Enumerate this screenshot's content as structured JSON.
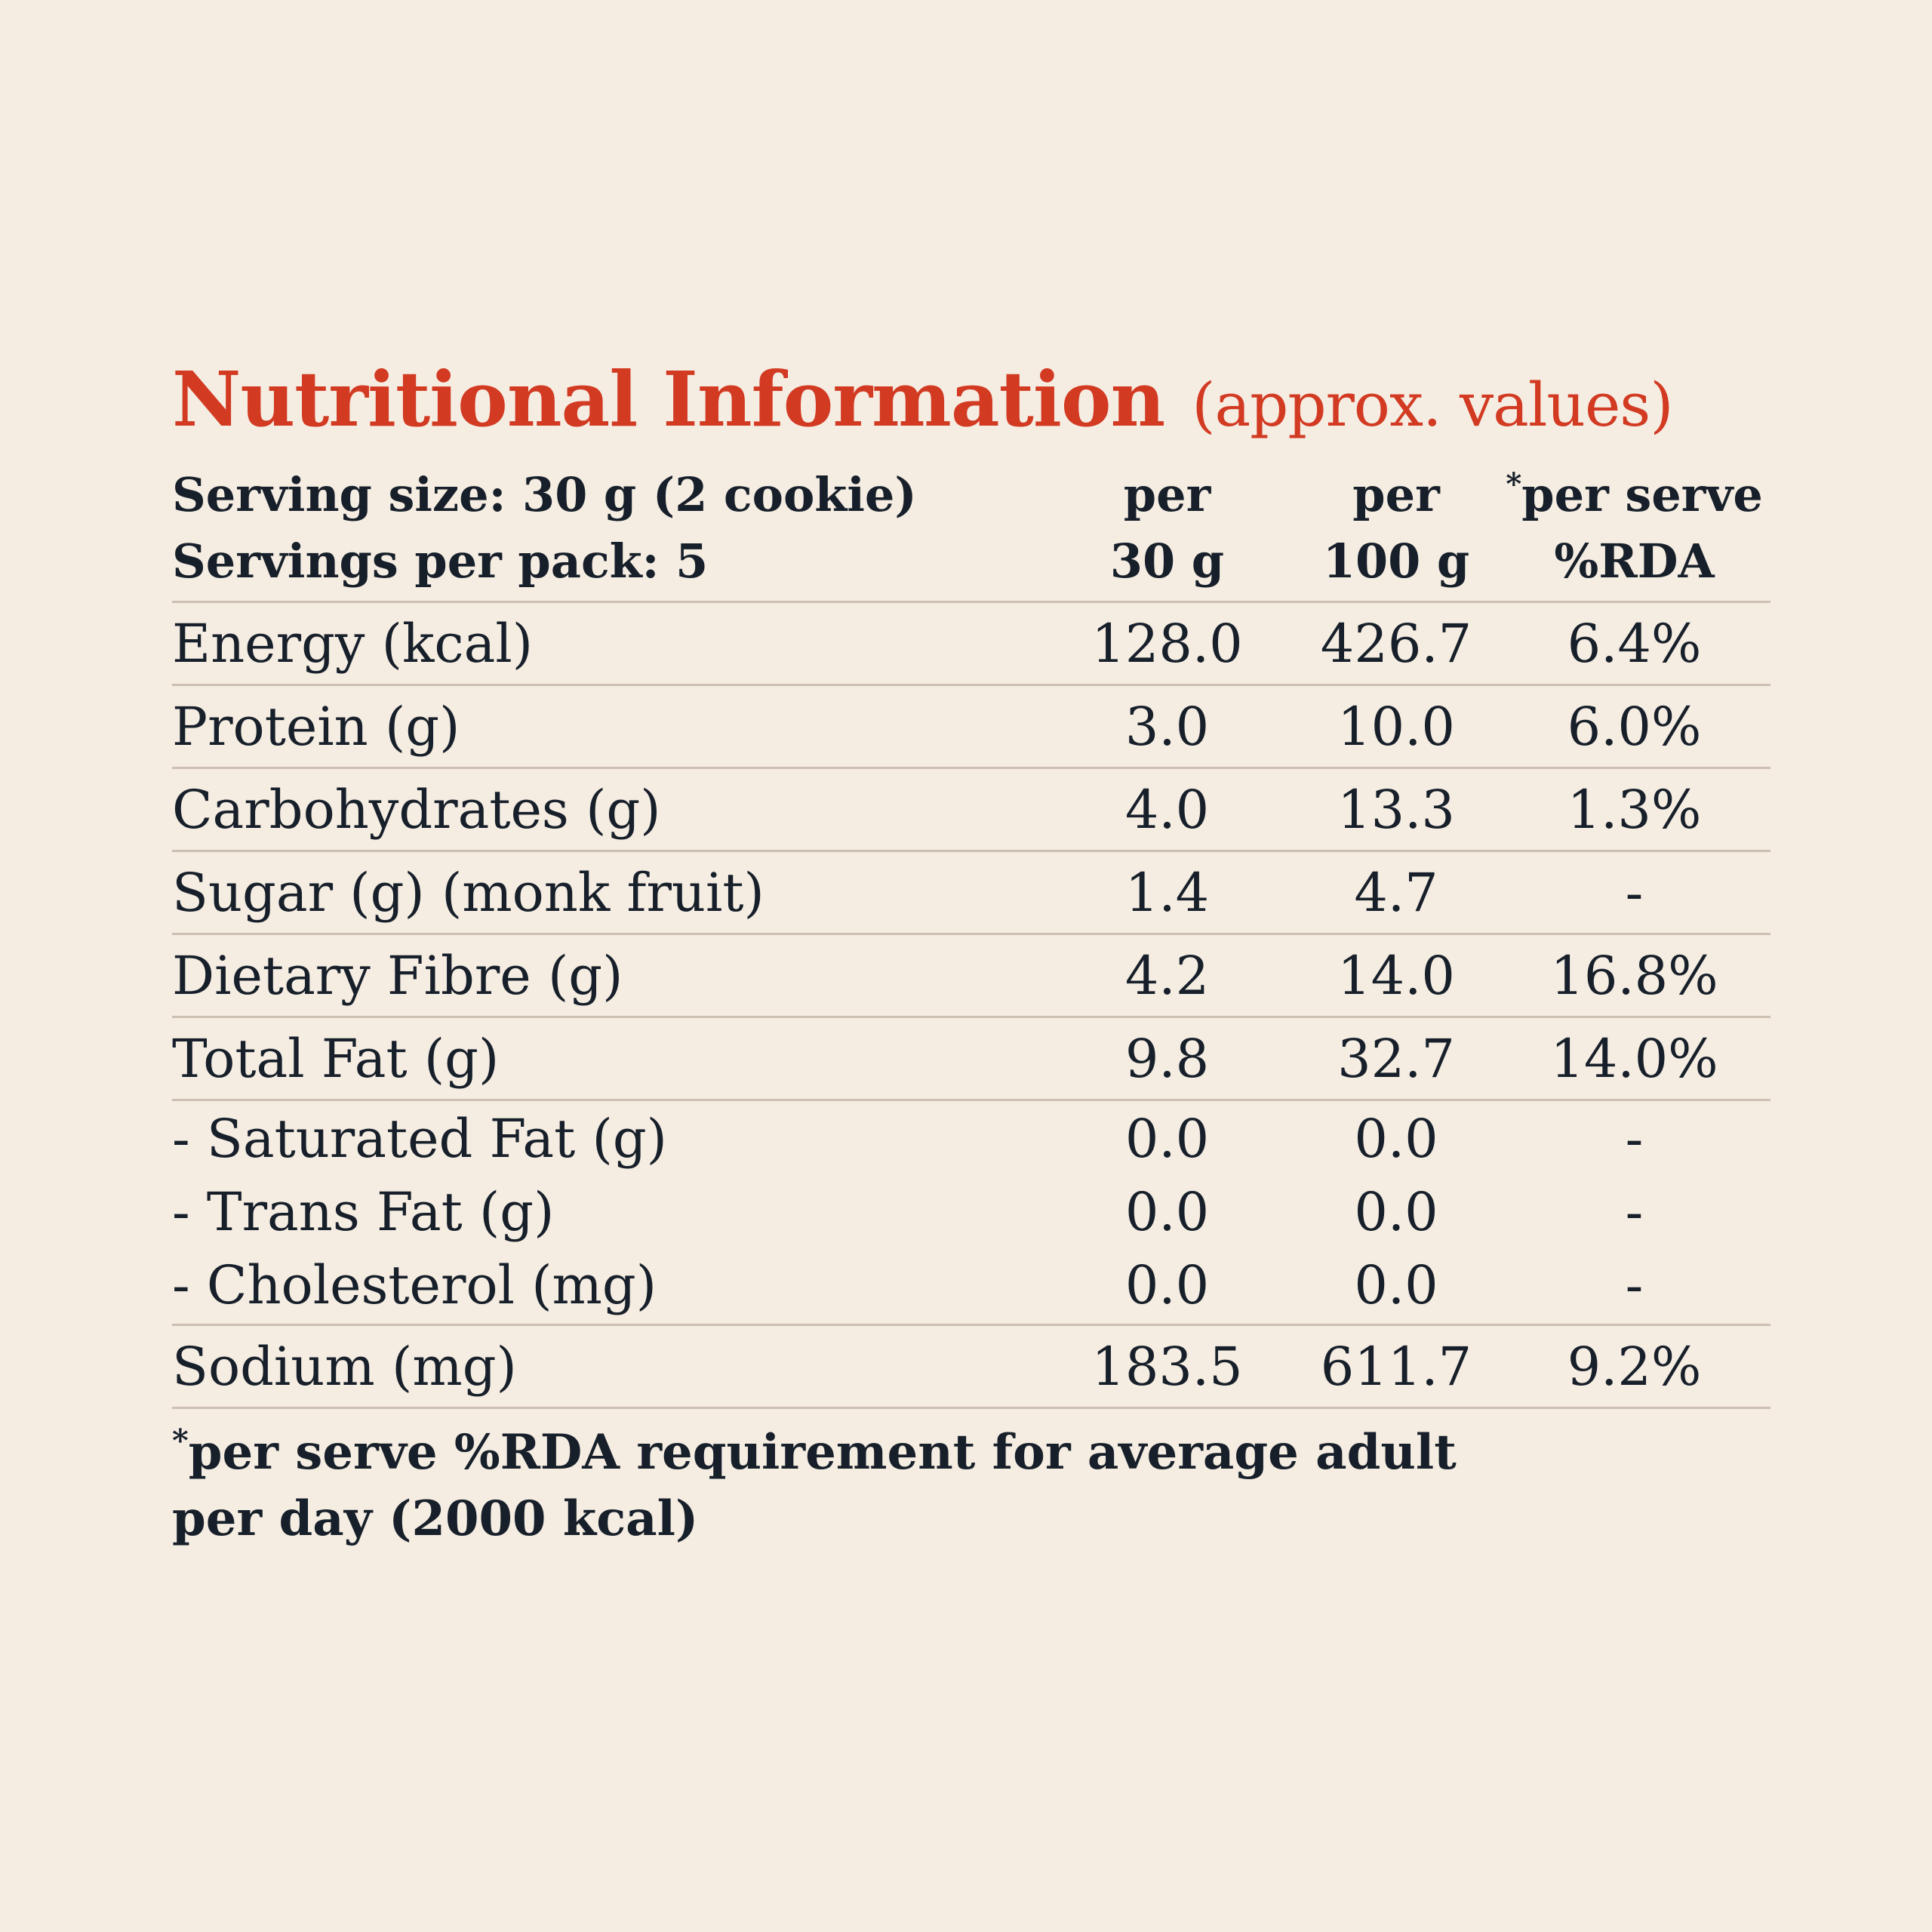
{
  "title": {
    "main": "Nutritional Information",
    "sub": "(approx. values)"
  },
  "header": {
    "serving_size": "Serving size: 30 g (2 cookie)",
    "servings_per_pack": "Servings per pack: 5",
    "col1_line1": "per",
    "col1_line2": "30 g",
    "col2_line1": "per",
    "col2_line2": "100 g",
    "col3_asterisk": "*",
    "col3_line1": "per serve",
    "col3_line2": "%RDA"
  },
  "rows": [
    {
      "label": "Energy (kcal)",
      "per30": "128.0",
      "per100": "426.7",
      "rda": "6.4%"
    },
    {
      "label": "Protein (g)",
      "per30": "3.0",
      "per100": "10.0",
      "rda": "6.0%"
    },
    {
      "label": "Carbohydrates (g)",
      "per30": "4.0",
      "per100": "13.3",
      "rda": "1.3%"
    },
    {
      "label": "Sugar (g) (monk fruit)",
      "per30": "1.4",
      "per100": "4.7",
      "rda": "-"
    },
    {
      "label": "Dietary Fibre (g)",
      "per30": "4.2",
      "per100": "14.0",
      "rda": "16.8%"
    },
    {
      "label": "Total Fat (g)",
      "per30": "9.8",
      "per100": "32.7",
      "rda": "14.0%"
    }
  ],
  "fat_breakdown": [
    {
      "label": "- Saturated Fat (g)",
      "per30": "0.0",
      "per100": "0.0",
      "rda": "-"
    },
    {
      "label": "- Trans Fat (g)",
      "per30": "0.0",
      "per100": "0.0",
      "rda": "-"
    },
    {
      "label": "- Cholesterol (mg)",
      "per30": "0.0",
      "per100": "0.0",
      "rda": "-"
    }
  ],
  "sodium": {
    "label": "Sodium (mg)",
    "per30": "183.5",
    "per100": "611.7",
    "rda": "9.2%"
  },
  "footnote": {
    "asterisk": "*",
    "line1": "per serve %RDA requirement for average adult",
    "line2": "per day (2000 kcal)"
  }
}
